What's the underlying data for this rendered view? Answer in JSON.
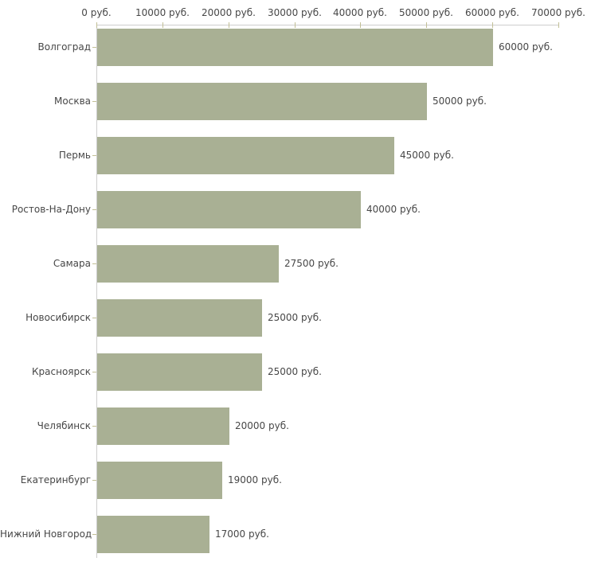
{
  "chart": {
    "background_color": "#ffffff",
    "bar_color": "#a9b094",
    "axis_line_color": "#cdcdcd",
    "tick_mark_color": "#c2bf96",
    "text_color": "#474747"
  },
  "chart_data": {
    "type": "bar",
    "orientation": "horizontal",
    "title": "",
    "xlabel": "",
    "ylabel": "",
    "unit": "руб.",
    "xlim": [
      0,
      70000
    ],
    "grid": false,
    "legend": "none",
    "x_tick_values": [
      0,
      10000,
      20000,
      30000,
      40000,
      50000,
      60000,
      70000
    ],
    "x_tick_labels": [
      "0 руб.",
      "10000 руб.",
      "20000 руб.",
      "30000 руб.",
      "40000 руб.",
      "50000 руб.",
      "60000 руб.",
      "70000 руб."
    ],
    "categories": [
      "Волгоград",
      "Москва",
      "Пермь",
      "Ростов-На-Дону",
      "Самара",
      "Новосибирск",
      "Красноярск",
      "Челябинск",
      "Екатеринбург",
      "Нижний Новгород"
    ],
    "values": [
      60000,
      50000,
      45000,
      40000,
      27500,
      25000,
      25000,
      20000,
      19000,
      17000
    ],
    "value_labels": [
      "60000 руб.",
      "50000 руб.",
      "45000 руб.",
      "40000 руб.",
      "27500 руб.",
      "25000 руб.",
      "25000 руб.",
      "20000 руб.",
      "19000 руб.",
      "17000 руб."
    ]
  }
}
